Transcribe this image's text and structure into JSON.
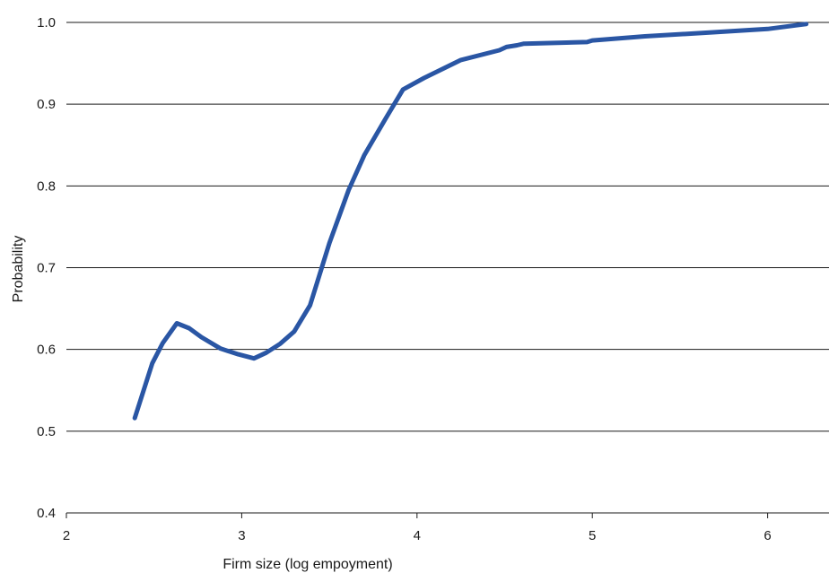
{
  "chart_data": {
    "type": "line",
    "title": "",
    "xlabel": "Firm size (log empoyment)",
    "ylabel": "Probability",
    "xlim": [
      2,
      6.35
    ],
    "ylim": [
      0.4,
      1.0
    ],
    "xticks": [
      2,
      3,
      4,
      5,
      6
    ],
    "yticks": [
      0.4,
      0.5,
      0.6,
      0.7,
      0.8,
      0.9,
      1.0
    ],
    "ytick_labels": [
      "0.4",
      "0.5",
      "0.6",
      "0.7",
      "0.8",
      "0.9",
      "1.0"
    ],
    "grid": "horizontal",
    "legend": "none",
    "series": [
      {
        "color": "#2a56a4",
        "x": [
          2.39,
          2.49,
          2.55,
          2.63,
          2.7,
          2.77,
          2.88,
          2.98,
          3.07,
          3.14,
          3.22,
          3.3,
          3.39,
          3.5,
          3.61,
          3.7,
          3.82,
          3.92,
          4.04,
          4.25,
          4.47,
          4.51,
          4.57,
          4.61,
          4.97,
          5.0,
          5.3,
          5.7,
          6.0,
          6.22
        ],
        "y": [
          0.516,
          0.583,
          0.608,
          0.632,
          0.626,
          0.615,
          0.601,
          0.594,
          0.589,
          0.596,
          0.607,
          0.622,
          0.654,
          0.73,
          0.795,
          0.838,
          0.882,
          0.918,
          0.932,
          0.954,
          0.966,
          0.97,
          0.972,
          0.974,
          0.976,
          0.978,
          0.983,
          0.988,
          0.992,
          0.998
        ]
      }
    ]
  }
}
